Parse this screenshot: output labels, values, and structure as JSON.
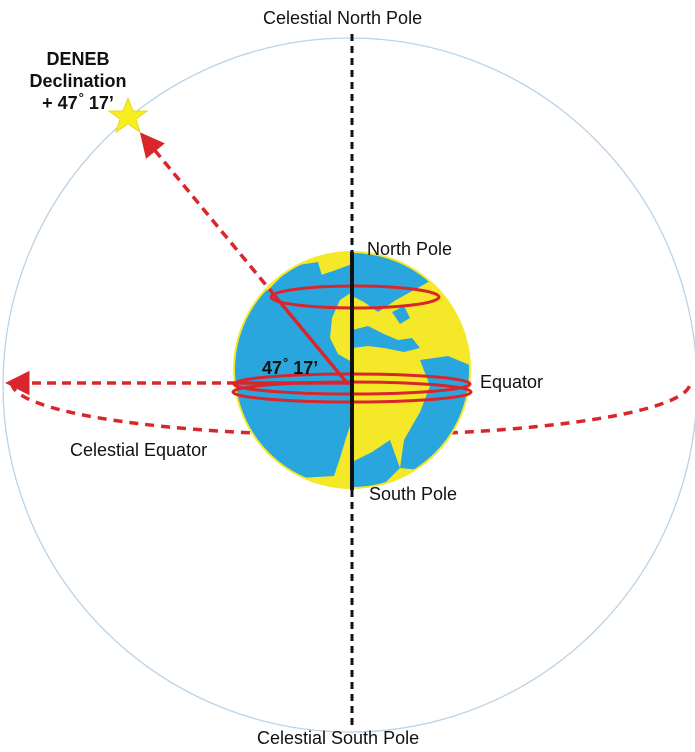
{
  "labels": {
    "celestial_north_pole": "Celestial North Pole",
    "celestial_south_pole": "Celestial South Pole",
    "north_pole": "North Pole",
    "south_pole": "South Pole",
    "equator": "Equator",
    "celestial_equator": "Celestial Equator",
    "angle_value": "47",
    "angle_minutes": "17’"
  },
  "star": {
    "name": "DENEB",
    "caption": "Declination",
    "declination_sign": "+ 47",
    "declination_minutes": "17’",
    "degree_symbol": "°"
  },
  "colors": {
    "sphere_outline": "#b9d3e8",
    "axis_dashed": "#111111",
    "earth_ocean": "#2aa6df",
    "earth_land": "#f4e829",
    "arrows_and_rings": "#d8262b",
    "star_fill": "#f7ee22"
  }
}
